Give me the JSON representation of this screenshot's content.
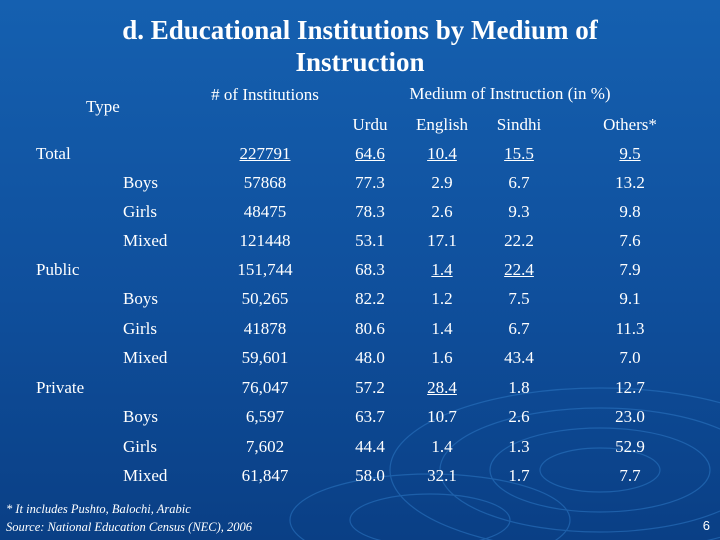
{
  "slide": {
    "title": "d. Educational Institutions by Medium of Instruction",
    "page_number": "6",
    "footnote": "* It includes Pushto, Balochi, Arabic",
    "source": "Source: National Education Census (NEC), 2006"
  },
  "table": {
    "header": {
      "type": "Type",
      "institutions": "# of Institutions",
      "medium": "Medium of Instruction (in %)",
      "urdu": "Urdu",
      "english": "English",
      "sindhi": "Sindhi",
      "others": "Others*"
    },
    "rows": [
      {
        "group": "Total",
        "sub": "",
        "inst": "227791",
        "urdu": "64.6",
        "english": "10.4",
        "sindhi": "15.5",
        "others": "9.5"
      },
      {
        "group": "",
        "sub": "Boys",
        "inst": "57868",
        "urdu": "77.3",
        "english": "2.9",
        "sindhi": "6.7",
        "others": "13.2"
      },
      {
        "group": "",
        "sub": "Girls",
        "inst": "48475",
        "urdu": "78.3",
        "english": "2.6",
        "sindhi": "9.3",
        "others": "9.8"
      },
      {
        "group": "",
        "sub": "Mixed",
        "inst": "121448",
        "urdu": "53.1",
        "english": "17.1",
        "sindhi": "22.2",
        "others": "7.6"
      },
      {
        "group": "Public",
        "sub": "",
        "inst": "151,744",
        "urdu": "68.3",
        "english": "1.4",
        "sindhi": "22.4",
        "others": "7.9"
      },
      {
        "group": "",
        "sub": "Boys",
        "inst": "50,265",
        "urdu": "82.2",
        "english": "1.2",
        "sindhi": "7.5",
        "others": "9.1"
      },
      {
        "group": "",
        "sub": "Girls",
        "inst": "41878",
        "urdu": "80.6",
        "english": "1.4",
        "sindhi": "6.7",
        "others": "11.3"
      },
      {
        "group": "",
        "sub": "Mixed",
        "inst": "59,601",
        "urdu": "48.0",
        "english": "1.6",
        "sindhi": "43.4",
        "others": "7.0"
      },
      {
        "group": "Private",
        "sub": "",
        "inst": "76,047",
        "urdu": "57.2",
        "english": "28.4",
        "sindhi": "1.8",
        "others": "12.7"
      },
      {
        "group": "",
        "sub": "Boys",
        "inst": "6,597",
        "urdu": "63.7",
        "english": "10.7",
        "sindhi": "2.6",
        "others": "23.0"
      },
      {
        "group": "",
        "sub": "Girls",
        "inst": "7,602",
        "urdu": "44.4",
        "english": "1.4",
        "sindhi": "1.3",
        "others": "52.9"
      },
      {
        "group": "",
        "sub": "Mixed",
        "inst": "61,847",
        "urdu": "58.0",
        "english": "32.1",
        "sindhi": "1.7",
        "others": "7.7"
      }
    ]
  },
  "colors": {
    "background": "#0f4d9a",
    "text": "#ffffff"
  }
}
